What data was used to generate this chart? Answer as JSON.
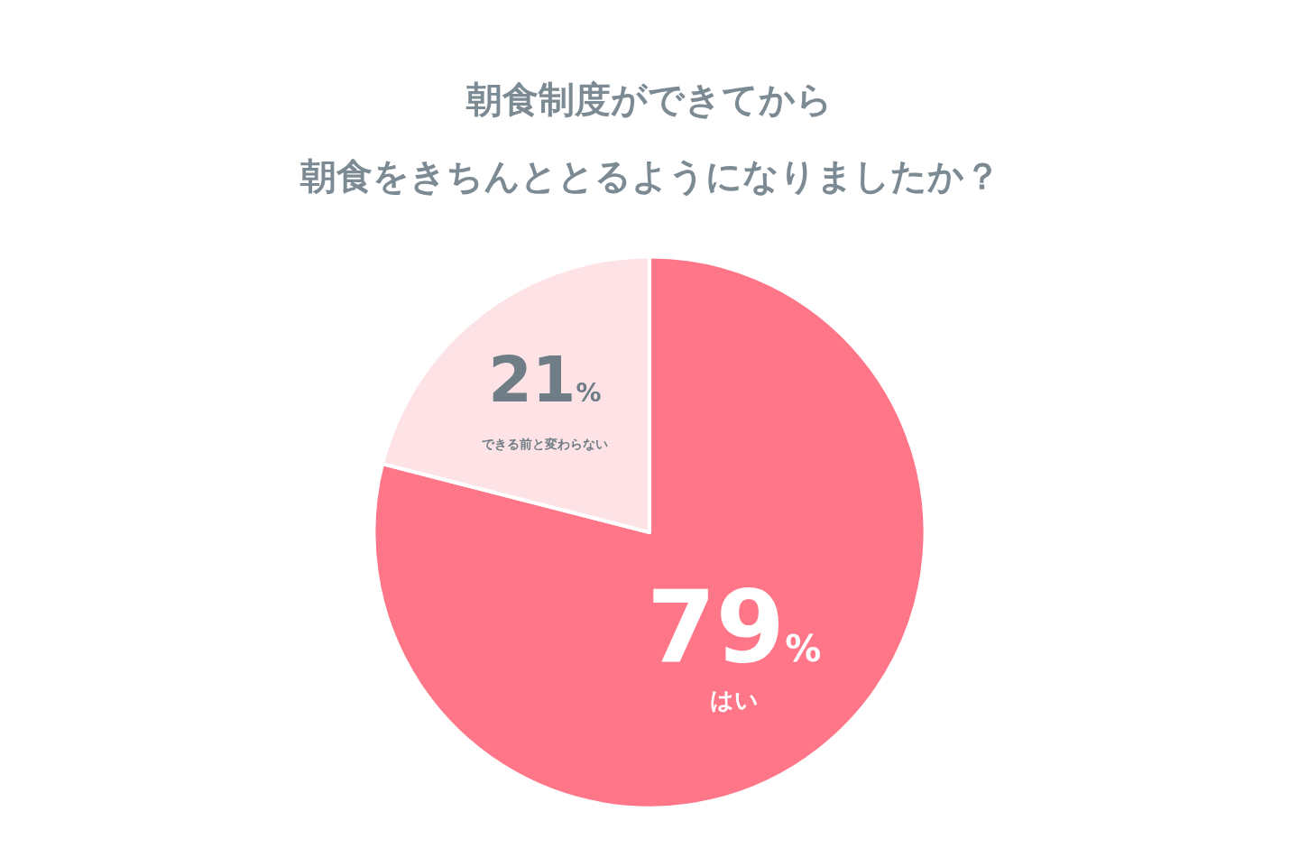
{
  "chart_data": {
    "type": "pie",
    "title": "朝食制度ができてから",
    "subtitle": "朝食をきちんととるようになりましたか？",
    "categories": [
      "はい",
      "できる前と変わらない"
    ],
    "values": [
      79,
      21
    ],
    "value_labels": [
      "79%",
      "21%"
    ],
    "colors": [
      "#ff7689",
      "#fde3e6"
    ],
    "legend": false
  }
}
